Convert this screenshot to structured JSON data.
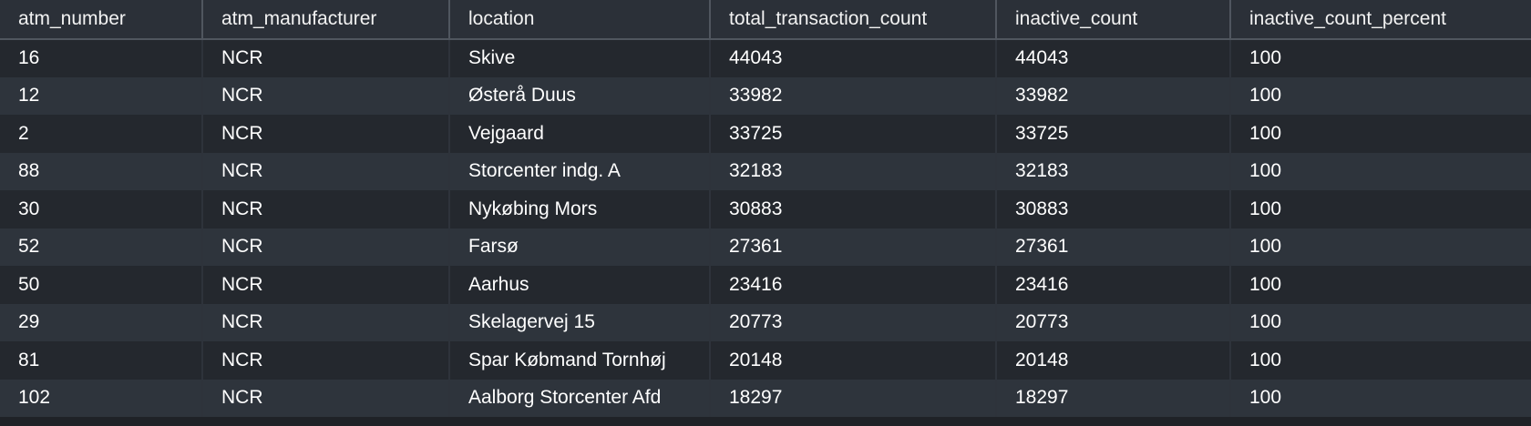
{
  "table": {
    "columns": [
      "atm_number",
      "atm_manufacturer",
      "location",
      "total_transaction_count",
      "inactive_count",
      "inactive_count_percent"
    ],
    "rows": [
      [
        "16",
        "NCR",
        "Skive",
        "44043",
        "44043",
        "100"
      ],
      [
        "12",
        "NCR",
        "Østerå  Duus",
        "33982",
        "33982",
        "100"
      ],
      [
        "2",
        "NCR",
        "Vejgaard",
        "33725",
        "33725",
        "100"
      ],
      [
        "88",
        "NCR",
        "Storcenter indg. A",
        "32183",
        "32183",
        "100"
      ],
      [
        "30",
        "NCR",
        "Nykøbing Mors",
        "30883",
        "30883",
        "100"
      ],
      [
        "52",
        "NCR",
        "Farsø",
        "27361",
        "27361",
        "100"
      ],
      [
        "50",
        "NCR",
        "Aarhus",
        "23416",
        "23416",
        "100"
      ],
      [
        "29",
        "NCR",
        "Skelagervej 15",
        "20773",
        "20773",
        "100"
      ],
      [
        "81",
        "NCR",
        "Spar Købmand Tornhøj",
        "20148",
        "20148",
        "100"
      ],
      [
        "102",
        "NCR",
        "Aalborg Storcenter  Afd",
        "18297",
        "18297",
        "100"
      ]
    ]
  }
}
